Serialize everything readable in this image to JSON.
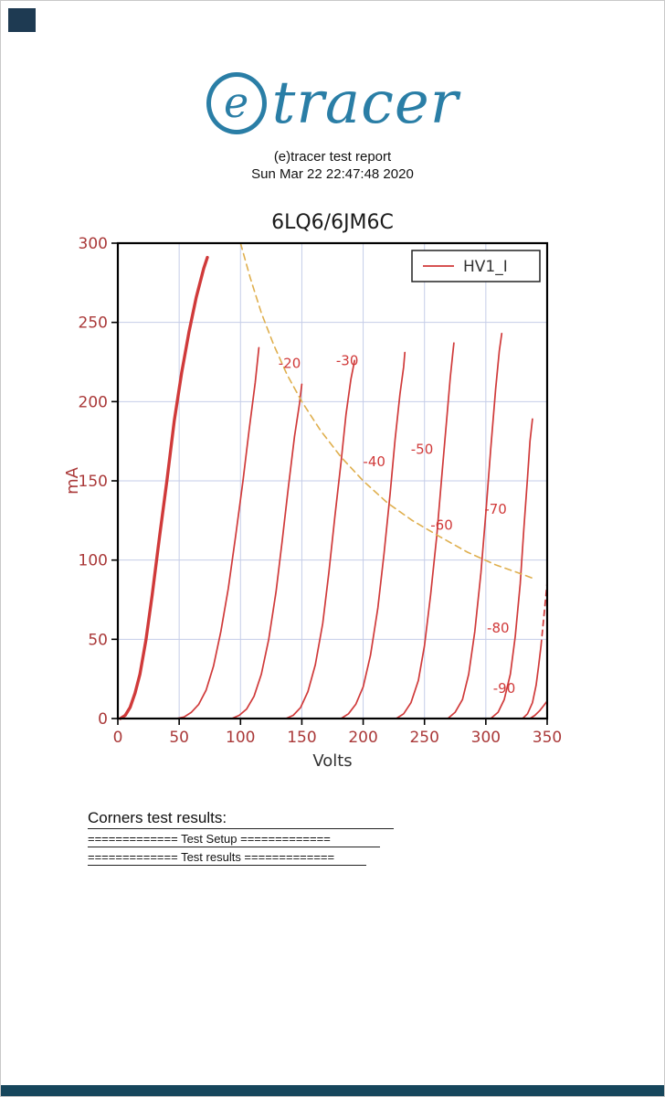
{
  "brand": {
    "e": "e",
    "rest": "tracer"
  },
  "report": {
    "line1": "(e)tracer test report",
    "line2": "Sun Mar 22 22:47:48 2020"
  },
  "colors": {
    "brand_teal": "#2a7ea6",
    "curve_red": "#d03a3a",
    "limit_orange": "#dfaf4e",
    "footer_bar": "#16465c",
    "corner_mark": "#1e3a52"
  },
  "chart_data": {
    "type": "line",
    "title": "6LQ6/6JM6C",
    "xlabel": "Volts",
    "ylabel": "mA",
    "xlim": [
      0,
      350
    ],
    "ylim": [
      0,
      300
    ],
    "xticks": [
      0,
      50,
      100,
      150,
      200,
      250,
      300,
      350
    ],
    "yticks": [
      0,
      50,
      100,
      150,
      200,
      250,
      300
    ],
    "grid": true,
    "legend": {
      "label": "HV1_I",
      "position": "upper right"
    },
    "curve_color": "#d03a3a",
    "grid_color": "#c5cde8",
    "tick_label_color": "#aa3939",
    "title_color": "#1a1a1a",
    "xlabel_color": "#333333",
    "ylabel_color": "#aa3939",
    "legend_text_color": "#333333",
    "series": [
      {
        "name": "vg-0",
        "width": 3.4,
        "points": [
          [
            2,
            0
          ],
          [
            6,
            2
          ],
          [
            10,
            7
          ],
          [
            14,
            16
          ],
          [
            18,
            28
          ],
          [
            23,
            50
          ],
          [
            28,
            78
          ],
          [
            34,
            115
          ],
          [
            40,
            150
          ],
          [
            46,
            188
          ],
          [
            52,
            218
          ],
          [
            58,
            244
          ],
          [
            64,
            266
          ],
          [
            70,
            284
          ],
          [
            73,
            291
          ]
        ]
      },
      {
        "name": "vg-10",
        "width": 1.7,
        "points": [
          [
            48,
            0
          ],
          [
            54,
            1
          ],
          [
            60,
            4
          ],
          [
            66,
            9
          ],
          [
            72,
            18
          ],
          [
            78,
            33
          ],
          [
            84,
            55
          ],
          [
            90,
            82
          ],
          [
            96,
            115
          ],
          [
            102,
            150
          ],
          [
            107,
            182
          ],
          [
            112,
            212
          ],
          [
            115,
            234
          ]
        ]
      },
      {
        "name": "vg-20",
        "width": 1.7,
        "points": [
          [
            93,
            0
          ],
          [
            99,
            2
          ],
          [
            105,
            6
          ],
          [
            111,
            14
          ],
          [
            117,
            28
          ],
          [
            123,
            50
          ],
          [
            129,
            80
          ],
          [
            134,
            112
          ],
          [
            139,
            146
          ],
          [
            144,
            178
          ],
          [
            148,
            198
          ],
          [
            150,
            211
          ]
        ]
      },
      {
        "name": "vg-30",
        "width": 1.7,
        "points": [
          [
            137,
            0
          ],
          [
            143,
            2
          ],
          [
            149,
            7
          ],
          [
            155,
            17
          ],
          [
            161,
            34
          ],
          [
            167,
            60
          ],
          [
            172,
            92
          ],
          [
            177,
            128
          ],
          [
            182,
            162
          ],
          [
            186,
            192
          ],
          [
            190,
            214
          ],
          [
            193,
            226
          ]
        ]
      },
      {
        "name": "vg-40",
        "width": 1.7,
        "points": [
          [
            182,
            0
          ],
          [
            188,
            3
          ],
          [
            194,
            9
          ],
          [
            200,
            20
          ],
          [
            206,
            40
          ],
          [
            212,
            70
          ],
          [
            217,
            104
          ],
          [
            222,
            142
          ],
          [
            226,
            176
          ],
          [
            230,
            205
          ],
          [
            233,
            222
          ],
          [
            234,
            231
          ]
        ]
      },
      {
        "name": "vg-50",
        "width": 1.7,
        "points": [
          [
            227,
            0
          ],
          [
            233,
            3
          ],
          [
            239,
            10
          ],
          [
            245,
            24
          ],
          [
            250,
            46
          ],
          [
            255,
            78
          ],
          [
            260,
            115
          ],
          [
            264,
            152
          ],
          [
            268,
            188
          ],
          [
            271,
            215
          ],
          [
            273,
            230
          ],
          [
            274,
            237
          ]
        ]
      },
      {
        "name": "vg-60",
        "width": 1.7,
        "points": [
          [
            269,
            0
          ],
          [
            275,
            4
          ],
          [
            281,
            12
          ],
          [
            286,
            28
          ],
          [
            291,
            55
          ],
          [
            296,
            92
          ],
          [
            300,
            130
          ],
          [
            304,
            170
          ],
          [
            308,
            208
          ],
          [
            311,
            232
          ],
          [
            313,
            243
          ]
        ]
      },
      {
        "name": "vg-70",
        "width": 1.7,
        "points": [
          [
            304,
            0
          ],
          [
            310,
            4
          ],
          [
            315,
            12
          ],
          [
            320,
            28
          ],
          [
            324,
            52
          ],
          [
            328,
            85
          ],
          [
            331,
            120
          ],
          [
            334,
            152
          ],
          [
            336,
            175
          ],
          [
            338,
            189
          ]
        ]
      },
      {
        "name": "vg-80",
        "width": 1.7,
        "points": [
          [
            330,
            0
          ],
          [
            334,
            3
          ],
          [
            338,
            10
          ],
          [
            341,
            21
          ],
          [
            343,
            33
          ],
          [
            345,
            46
          ]
        ]
      },
      {
        "name": "vg-80-dashed-ext",
        "width": 1.7,
        "dash": "6 5",
        "points": [
          [
            345,
            46
          ],
          [
            347,
            62
          ],
          [
            349,
            78
          ],
          [
            350,
            86
          ]
        ]
      },
      {
        "name": "vg-90",
        "width": 1.7,
        "points": [
          [
            336,
            0
          ],
          [
            340,
            2
          ],
          [
            344,
            5
          ],
          [
            347,
            8
          ],
          [
            350,
            11
          ]
        ]
      },
      {
        "name": "dissipation-limit",
        "width": 1.6,
        "dash": "7 5",
        "color": "#dfaf4e",
        "points": [
          [
            100,
            300
          ],
          [
            108,
            278
          ],
          [
            117,
            256
          ],
          [
            127,
            236
          ],
          [
            138,
            217
          ],
          [
            150,
            200
          ],
          [
            165,
            182
          ],
          [
            182,
            165
          ],
          [
            200,
            150
          ],
          [
            220,
            136
          ],
          [
            240,
            125
          ],
          [
            262,
            115
          ],
          [
            285,
            105
          ],
          [
            308,
            97
          ],
          [
            330,
            91
          ],
          [
            340,
            88
          ]
        ]
      }
    ],
    "curve_labels": [
      {
        "text": "-20",
        "v": 140,
        "i": 224
      },
      {
        "text": "-30",
        "v": 187,
        "i": 226
      },
      {
        "text": "-40",
        "v": 209,
        "i": 162
      },
      {
        "text": "-50",
        "v": 248,
        "i": 170
      },
      {
        "text": "-60",
        "v": 264,
        "i": 122
      },
      {
        "text": "-70",
        "v": 308,
        "i": 132
      },
      {
        "text": "-80",
        "v": 310,
        "i": 57
      },
      {
        "text": "-90",
        "v": 315,
        "i": 19
      }
    ]
  },
  "results": {
    "heading": "Corners test results:",
    "setup": "============= Test Setup =============",
    "results": "============= Test results ============="
  }
}
